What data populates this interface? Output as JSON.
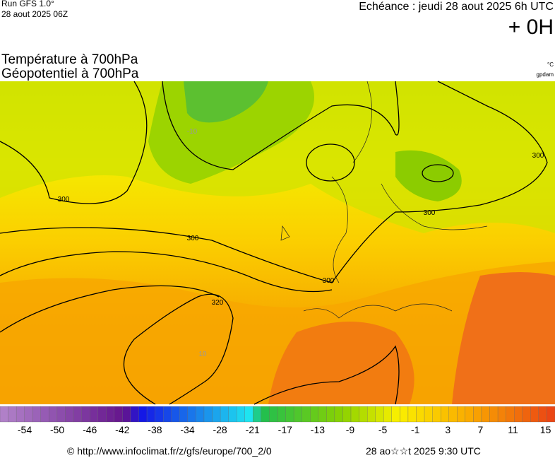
{
  "header": {
    "run": "Run GFS 1.0°",
    "run_date": "28 aout 2025 06Z",
    "echeance": "Echéance : jeudi 28 aout 2025 6h UTC",
    "lead": "+ 0H",
    "title_temp": "Température à 700hPa",
    "title_geo": "Géopotentiel à 700hPa",
    "unit_temp": "°C",
    "unit_geo": "gpdam"
  },
  "map": {
    "contour_labels": [
      "300",
      "300",
      "300",
      "300",
      "300",
      "320",
      "-10",
      "10"
    ]
  },
  "scale": {
    "labels": [
      -54,
      -50,
      -46,
      -42,
      -38,
      -34,
      -28,
      -21,
      -17,
      -13,
      -9,
      -5,
      -1,
      3,
      7,
      11,
      15
    ]
  },
  "footer": {
    "source": "© http://www.infoclimat.fr/z/gfs/europe/700_2/0",
    "timestamp": "28 ao☆☆t 2025  9:30 UTC"
  }
}
